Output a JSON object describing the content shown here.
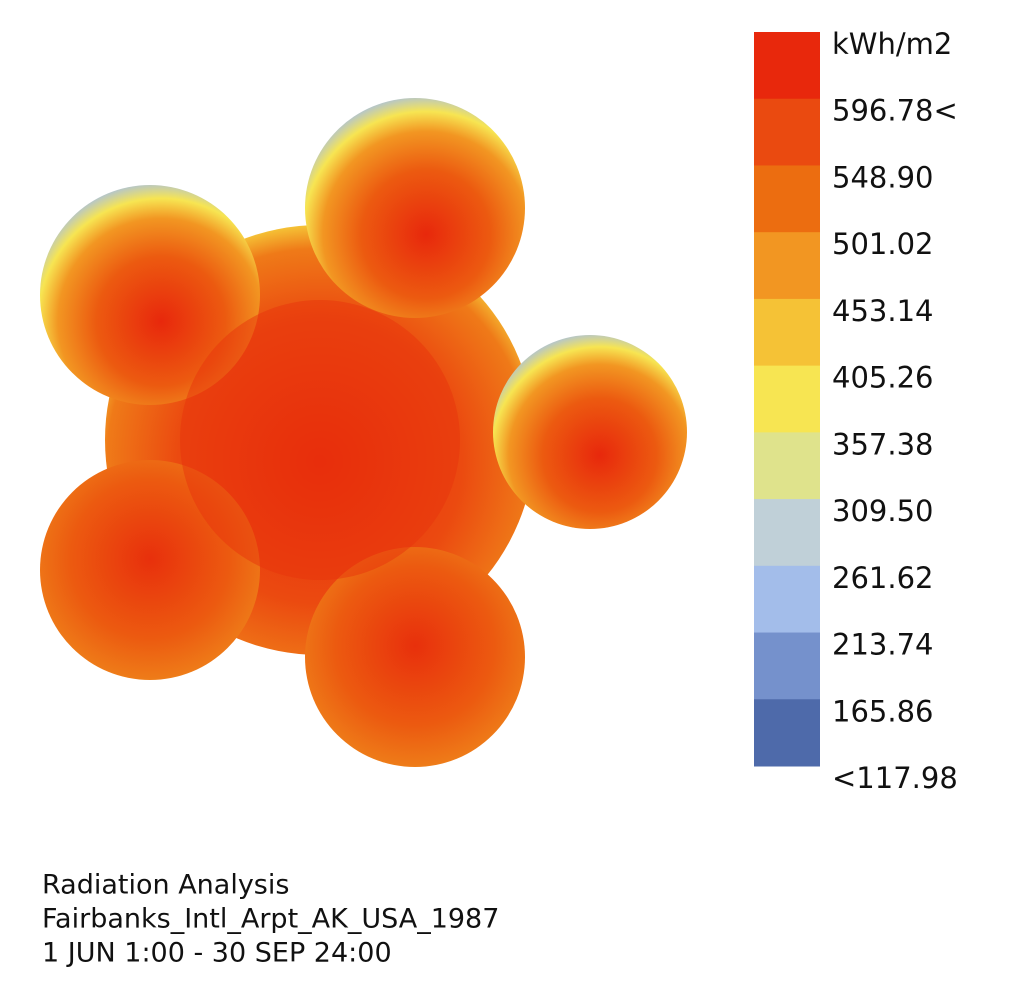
{
  "legend": {
    "unit": "kWh/m2",
    "labels": [
      "596.78<",
      "548.90",
      "501.02",
      "453.14",
      "405.26",
      "357.38",
      "309.50",
      "261.62",
      "213.74",
      "165.86",
      "<117.98"
    ],
    "colors": [
      "#e8280c",
      "#ea4a10",
      "#ec6d10",
      "#f29622",
      "#f5c236",
      "#f7e552",
      "#dfe38c",
      "#c0d0d8",
      "#a3bdea",
      "#7591cc",
      "#4e6aaa"
    ]
  },
  "caption": {
    "lines": [
      "Radiation Analysis",
      "Fairbanks_Intl_Arpt_AK_USA_1987",
      "1 JUN 1:00 - 30 SEP 24:00"
    ]
  }
}
